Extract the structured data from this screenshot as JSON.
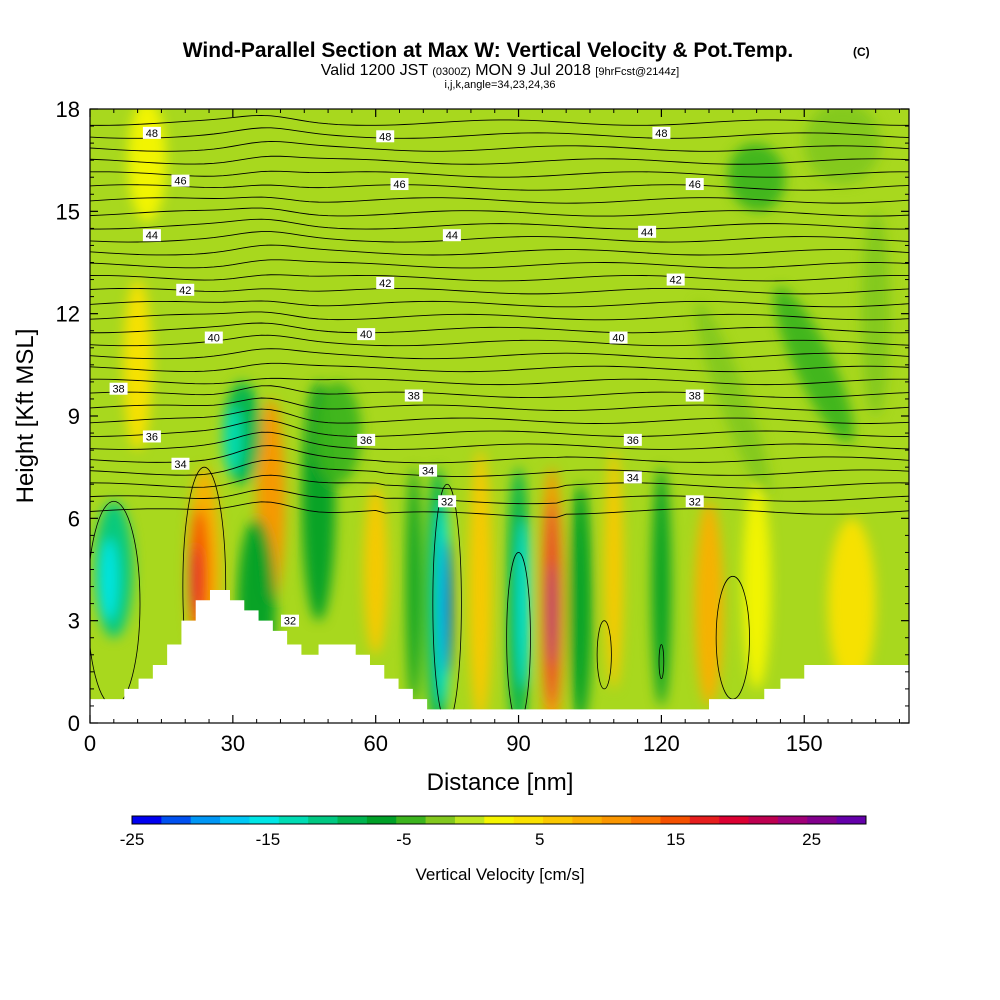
{
  "chart_data": {
    "type": "heatmap",
    "title": "Wind-Parallel Section at Max W: Vertical Velocity & Pot.Temp.",
    "title_mark": "(C)",
    "subtitle": {
      "part1": "Valid 1200 JST ",
      "part2": "(0300Z)",
      "part3": " MON 9 Jul 2018 ",
      "part4": "[9hrFcst@2144z]"
    },
    "subtitle2": "i,j,k,angle=34,23,24,36",
    "xlabel": "Distance [nm]",
    "ylabel": "Height [Kft MSL]",
    "xlim": [
      0,
      172
    ],
    "ylim": [
      0,
      18
    ],
    "x_ticks": [
      "0",
      "30",
      "60",
      "90",
      "120",
      "150"
    ],
    "x_tick_values": [
      0,
      30,
      60,
      90,
      120,
      150
    ],
    "y_ticks": [
      "0",
      "3",
      "6",
      "9",
      "12",
      "15",
      "18"
    ],
    "y_tick_values": [
      0,
      3,
      6,
      9,
      12,
      15,
      18
    ],
    "colorbar": {
      "label": "Vertical Velocity [cm/s]",
      "tick_labels": [
        "-25",
        "-15",
        "-5",
        "5",
        "15",
        "25"
      ],
      "tick_values": [
        -25,
        -15,
        -5,
        5,
        15,
        25
      ],
      "min": -25,
      "max": 29,
      "step": 2.5,
      "colors": [
        "#0000f0",
        "#0050f0",
        "#0096f5",
        "#00c8f5",
        "#00e6e6",
        "#00dcb4",
        "#00c882",
        "#00b450",
        "#00a028",
        "#3cb41e",
        "#82c81e",
        "#bee61e",
        "#f5f500",
        "#fae100",
        "#fac800",
        "#faaf00",
        "#fa9600",
        "#fa7800",
        "#f55000",
        "#e61e1e",
        "#dc0032",
        "#be0050",
        "#a00078",
        "#82008c",
        "#6400aa"
      ]
    },
    "terrain_height_kft": [
      0.7,
      0.7,
      1.0,
      1.3,
      1.7,
      2.3,
      3.0,
      3.6,
      3.9,
      3.6,
      3.3,
      3.0,
      2.7,
      2.3,
      2.0,
      2.3,
      2.3,
      2.0,
      1.7,
      1.3,
      1.0,
      0.7,
      0.4,
      0.4,
      0.4,
      0.4,
      0.4,
      0.4,
      0.4,
      0.4,
      0.4,
      0.4,
      0.4,
      0.4,
      0.7,
      0.7,
      0.7,
      1.0,
      1.3,
      1.7,
      1.7,
      1.7,
      1.7
    ],
    "terrain_x_nm": [
      0,
      3.6,
      7.2,
      10.2,
      13.2,
      16.2,
      19.2,
      22.2,
      25.2,
      29.4,
      32.4,
      35.4,
      38.4,
      41.4,
      44.4,
      48.0,
      52.8,
      55.8,
      58.8,
      61.8,
      64.8,
      67.8,
      70.8,
      75.0,
      80.0,
      85.0,
      90.0,
      95.0,
      100.0,
      105.0,
      110.0,
      115.0,
      120.0,
      124.8,
      130.0,
      134.0,
      138.0,
      141.6,
      145.0,
      150.0,
      160.0,
      168.0,
      172.0
    ],
    "theta_contour_labels": [
      {
        "text": "48",
        "x": 13,
        "y": 17.3
      },
      {
        "text": "48",
        "x": 62,
        "y": 17.2
      },
      {
        "text": "48",
        "x": 120,
        "y": 17.3
      },
      {
        "text": "46",
        "x": 19,
        "y": 15.9
      },
      {
        "text": "46",
        "x": 65,
        "y": 15.8
      },
      {
        "text": "46",
        "x": 127,
        "y": 15.8
      },
      {
        "text": "44",
        "x": 13,
        "y": 14.3
      },
      {
        "text": "44",
        "x": 76,
        "y": 14.3
      },
      {
        "text": "44",
        "x": 117,
        "y": 14.4
      },
      {
        "text": "42",
        "x": 20,
        "y": 12.7
      },
      {
        "text": "42",
        "x": 62,
        "y": 12.9
      },
      {
        "text": "42",
        "x": 123,
        "y": 13.0
      },
      {
        "text": "40",
        "x": 26,
        "y": 11.3
      },
      {
        "text": "40",
        "x": 58,
        "y": 11.4
      },
      {
        "text": "40",
        "x": 111,
        "y": 11.3
      },
      {
        "text": "38",
        "x": 6,
        "y": 9.8
      },
      {
        "text": "38",
        "x": 68,
        "y": 9.6
      },
      {
        "text": "38",
        "x": 127,
        "y": 9.6
      },
      {
        "text": "36",
        "x": 13,
        "y": 8.4
      },
      {
        "text": "36",
        "x": 58,
        "y": 8.3
      },
      {
        "text": "36",
        "x": 114,
        "y": 8.3
      },
      {
        "text": "34",
        "x": 19,
        "y": 7.6
      },
      {
        "text": "34",
        "x": 71,
        "y": 7.4
      },
      {
        "text": "34",
        "x": 114,
        "y": 7.2
      },
      {
        "text": "32",
        "x": 75,
        "y": 6.5
      },
      {
        "text": "32",
        "x": 127,
        "y": 6.5
      },
      {
        "text": "32",
        "x": 42,
        "y": 3.0
      }
    ]
  }
}
